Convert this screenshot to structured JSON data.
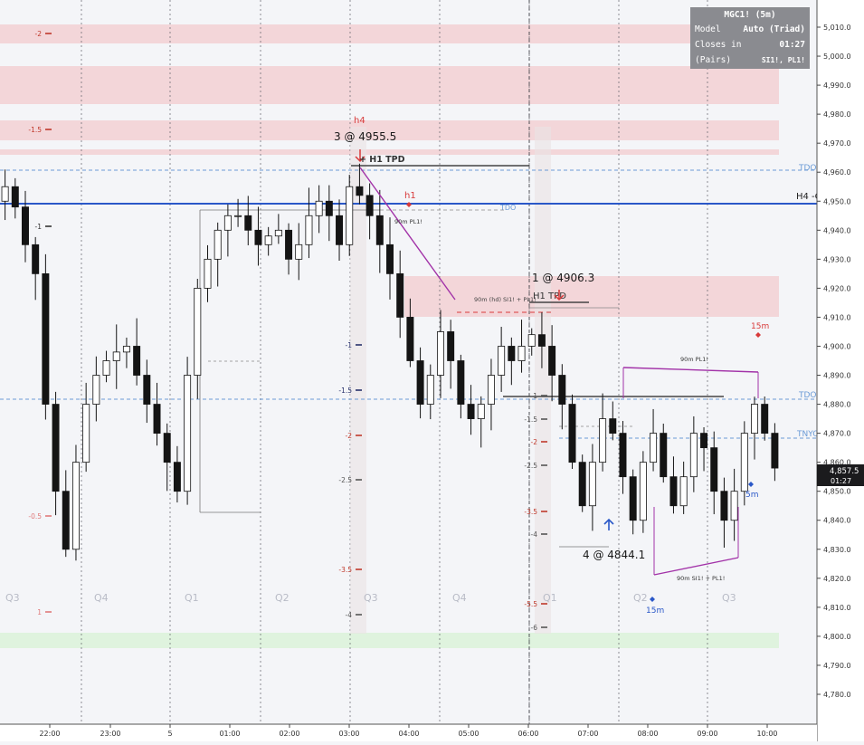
{
  "panel": {
    "title": "MGC1! (5m)",
    "rows": [
      {
        "k": "Model",
        "v": "Auto (Triad)"
      },
      {
        "k": "Closes in",
        "v": "01:27"
      },
      {
        "k": "(Pairs)",
        "v": "SI1!, PL1!"
      }
    ]
  },
  "price_axis": {
    "ticks": [
      "5,010.0",
      "5,000.0",
      "4,990.0",
      "4,980.0",
      "4,970.0",
      "4,960.0",
      "4,950.0",
      "4,940.0",
      "4,930.0",
      "4,920.0",
      "4,910.0",
      "4,900.0",
      "4,890.0",
      "4,880.0",
      "4,870.0",
      "4,860.0",
      "4,850.0",
      "4,840.0",
      "4,830.0",
      "4,820.0",
      "4,810.0",
      "4,800.0",
      "4,790.0",
      "4,780.0"
    ],
    "current_price": "4,857.5",
    "current_countdown": "01:27"
  },
  "time_axis": {
    "labels": [
      "22:00",
      "23:00",
      "5",
      "01:00",
      "02:00",
      "03:00",
      "04:00",
      "05:00",
      "06:00",
      "07:00",
      "08:00",
      "09:00",
      "10:00"
    ]
  },
  "annotations": {
    "entry_3": "3 @ 4955.5",
    "h4_marker": "h4",
    "h1_marker": "h1",
    "h1_tpd_top": "+ H1 TPD",
    "pl_label_top": "90m PL1!",
    "entry_1": "1 @ 4906.3",
    "h1_tpd_mid": "H1 TPD",
    "hd_label": "90m (hd) SI1! + PL1!",
    "entry_4": "4 @ 4844.1",
    "pl_label_right": "90m PL1!",
    "si_pl_label": "90m SI1! + PL1!",
    "m15_label": "15m",
    "m5_label": "5m",
    "m15_bottom": "15m",
    "h4_line": "H4 -C",
    "tdo_top": "TDO",
    "tdo_mid": "TDO",
    "tnyo": "TNYO",
    "tdo_left": "TDO"
  },
  "quarters": {
    "labels": [
      "Q3",
      "Q4",
      "Q1",
      "Q2",
      "Q3",
      "Q4",
      "Q1",
      "Q2",
      "Q3"
    ]
  },
  "deviations": {
    "left": [
      "-2",
      "-1.5",
      "-1",
      "-0.5",
      "1"
    ],
    "mid": [
      "-1",
      "-1.5",
      "-2",
      "-2.5",
      "-3.5",
      "-4"
    ],
    "right": [
      "-1",
      "-1.5",
      "-2",
      "-2.5",
      "-3.5",
      "-4",
      "-5.5",
      "-6"
    ]
  },
  "colors": {
    "bg": "#f4f5f8",
    "candle": "#141414",
    "zone_red": "#f3d6d9",
    "zone_green": "#dff3de",
    "h4_line": "#2a58c8",
    "purple": "#a232a8",
    "red": "#d83a3a",
    "blue_dash": "#6b9bd6"
  },
  "chart_data": {
    "type": "candlestick",
    "symbol": "MGC1!",
    "interval": "5m",
    "x": [
      "22:00",
      "23:00",
      "5",
      "01:00",
      "02:00",
      "03:00",
      "04:00",
      "05:00",
      "06:00",
      "07:00",
      "08:00",
      "09:00",
      "10:00"
    ],
    "ylim": [
      4775,
      5015
    ],
    "last_price": 4857.5,
    "approx_closes": [
      4955,
      4948,
      4935,
      4925,
      4880,
      4850,
      4830,
      4860,
      4880,
      4890,
      4895,
      4898,
      4900,
      4890,
      4880,
      4870,
      4860,
      4850,
      4890,
      4920,
      4930,
      4940,
      4945,
      4945,
      4940,
      4935,
      4938,
      4940,
      4930,
      4935,
      4945,
      4950,
      4945,
      4935,
      4955,
      4952,
      4945,
      4935,
      4925,
      4910,
      4895,
      4880,
      4890,
      4905,
      4895,
      4880,
      4875,
      4880,
      4890,
      4900,
      4895,
      4900,
      4904,
      4900,
      4890,
      4880,
      4860,
      4845,
      4860,
      4875,
      4870,
      4855,
      4840,
      4860,
      4870,
      4855,
      4845,
      4855,
      4870,
      4865,
      4850,
      4840,
      4850,
      4870,
      4880,
      4870,
      4858
    ],
    "levels": [
      {
        "name": "H4 -C",
        "value": 4949.5
      },
      {
        "name": "TDO",
        "value": 4961
      },
      {
        "name": "TDO",
        "value": 4881.5
      },
      {
        "name": "TNYO",
        "value": 4868
      }
    ],
    "annotations": [
      {
        "text": "3 @ 4955.5",
        "x": "03:00",
        "y": 4955.5
      },
      {
        "text": "1 @ 4906.3",
        "x": "06:00",
        "y": 4906.3
      },
      {
        "text": "4 @ 4844.1",
        "x": "07:00",
        "y": 4844.1
      }
    ]
  }
}
